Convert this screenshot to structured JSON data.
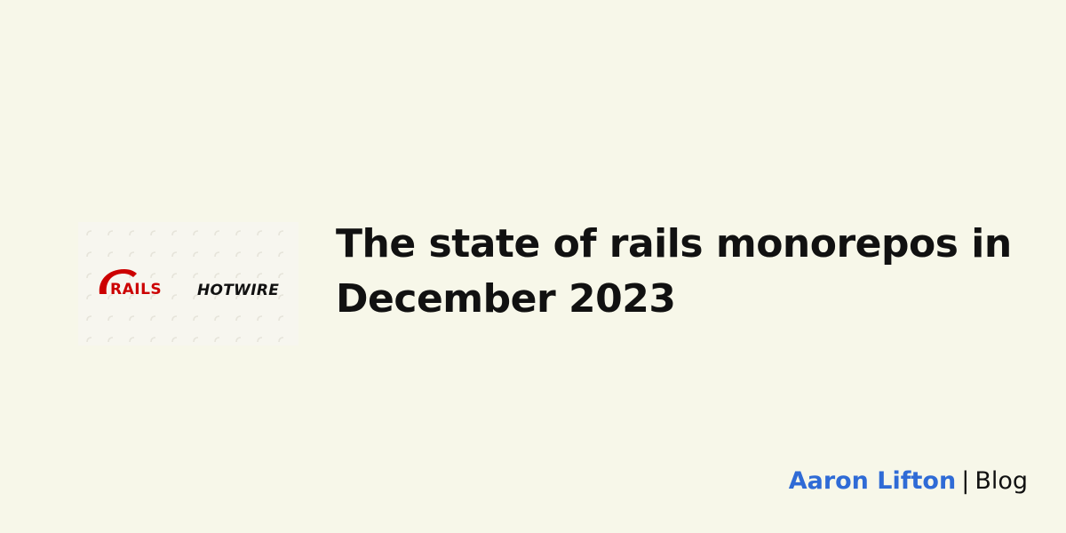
{
  "hero_image": {
    "logos": [
      "RAILS",
      "HOTWIRE"
    ],
    "colors": {
      "rails_red": "#cc0000",
      "hotwire_black": "#111111",
      "pattern_bg": "#f7f6ef",
      "pattern_mark": "#e6e4da"
    }
  },
  "post": {
    "title_line1": "The state of rails monorepos in",
    "title_line2": "December 2023"
  },
  "footer": {
    "author": "Aaron Lifton",
    "separator": "|",
    "site_section": "Blog"
  },
  "colors": {
    "background": "#f7f7e9",
    "text": "#111111",
    "accent": "#2f6bd6"
  }
}
